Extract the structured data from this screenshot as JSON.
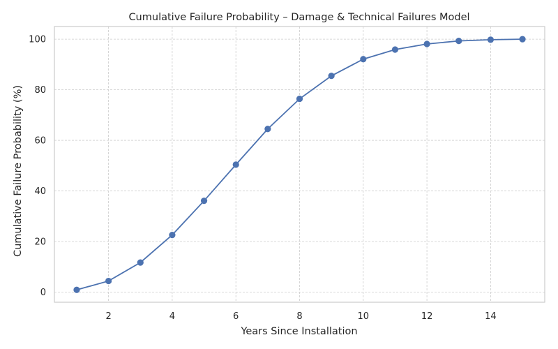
{
  "chart_data": {
    "type": "line",
    "title": "Cumulative Failure Probability – Damage & Technical Failures Model",
    "xlabel": "Years Since Installation",
    "ylabel": "Cumulative Failure Probability (%)",
    "x": [
      1,
      2,
      3,
      4,
      5,
      6,
      7,
      8,
      9,
      10,
      11,
      12,
      13,
      14,
      15
    ],
    "series": [
      {
        "values": [
          0.9,
          4.4,
          11.7,
          22.6,
          36.1,
          50.4,
          64.5,
          76.4,
          85.5,
          92.1,
          95.9,
          98.1,
          99.3,
          99.8,
          100.0
        ],
        "color": "#4c72b0",
        "marker": "circle"
      }
    ],
    "xlim": [
      0.3,
      15.7
    ],
    "ylim": [
      -4,
      105
    ],
    "xticks": [
      2,
      4,
      6,
      8,
      10,
      12,
      14
    ],
    "yticks": [
      0,
      20,
      40,
      60,
      80,
      100
    ],
    "grid": true,
    "legend": false
  }
}
